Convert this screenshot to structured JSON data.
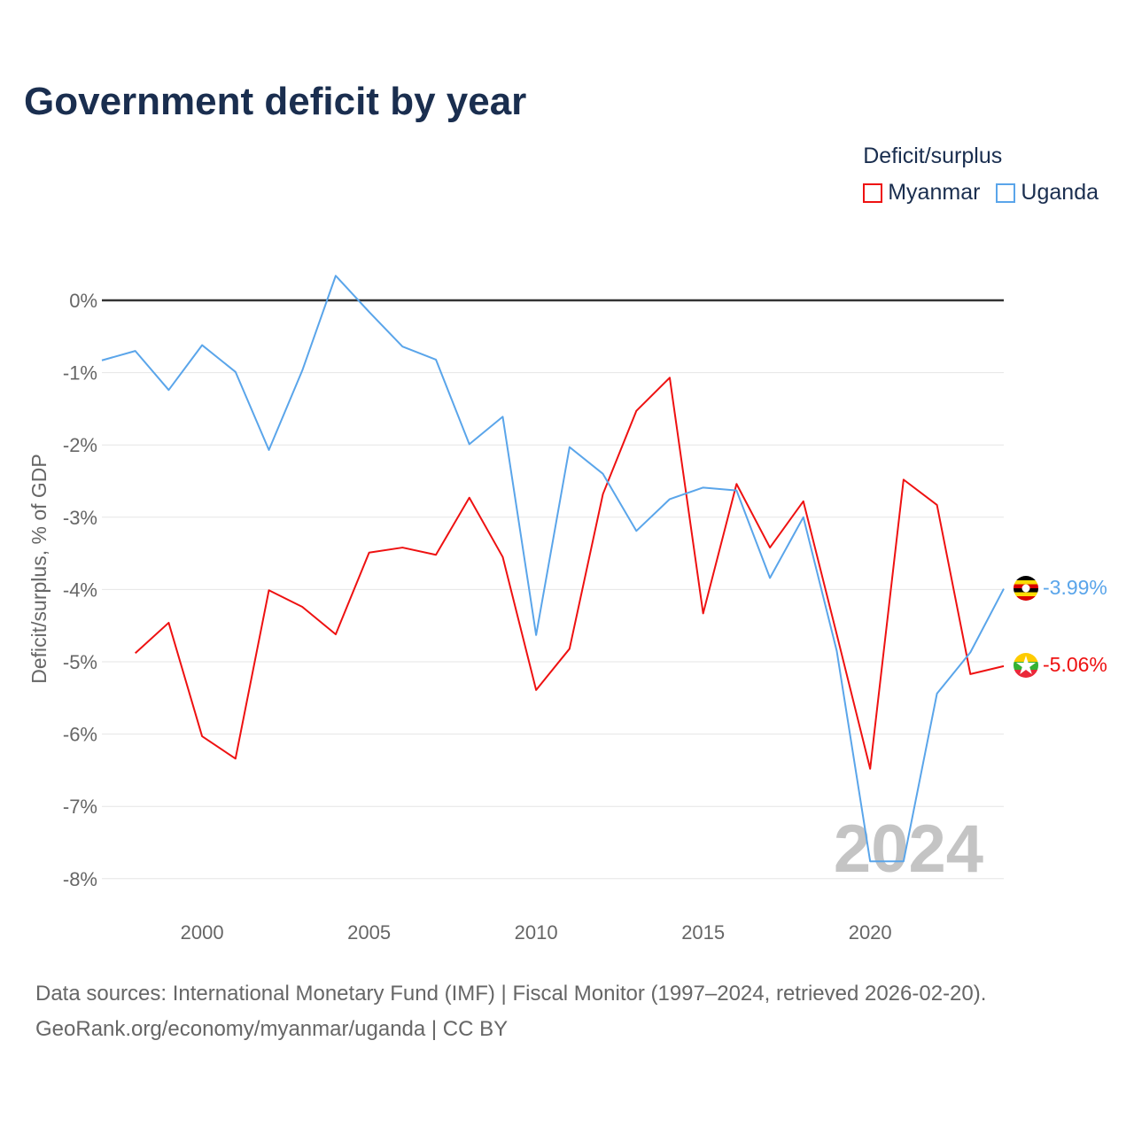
{
  "chart_data": {
    "type": "line",
    "title": "Government deficit by year",
    "ylabel": "Deficit/surplus, % of GDP",
    "xlabel": "",
    "xlim": [
      1997,
      2024
    ],
    "ylim": [
      -8.4,
      0.9
    ],
    "x_ticks": [
      2000,
      2005,
      2010,
      2015,
      2020
    ],
    "x_tick_labels": [
      "2000",
      "2005",
      "2010",
      "2015",
      "2020"
    ],
    "y_ticks": [
      0,
      -1,
      -2,
      -3,
      -4,
      -5,
      -6,
      -7,
      -8
    ],
    "y_tick_labels": [
      "0%",
      "-1%",
      "-2%",
      "-3%",
      "-4%",
      "-5%",
      "-6%",
      "-7%",
      "-8%"
    ],
    "legend_title": "Deficit/surplus",
    "legend_position": "top-right",
    "watermark_year": "2024",
    "series": [
      {
        "name": "Myanmar",
        "color": "#ee1111",
        "end_label": "-5.06%",
        "x": [
          1998,
          1999,
          2000,
          2001,
          2002,
          2003,
          2004,
          2005,
          2006,
          2007,
          2008,
          2009,
          2010,
          2011,
          2012,
          2013,
          2014,
          2015,
          2016,
          2017,
          2018,
          2019,
          2020,
          2021,
          2022,
          2023,
          2024
        ],
        "values": [
          -4.88,
          -4.46,
          -6.03,
          -6.34,
          -4.01,
          -4.24,
          -4.62,
          -3.49,
          -3.42,
          -3.52,
          -2.73,
          -3.55,
          -5.39,
          -4.82,
          -2.68,
          -1.53,
          -1.07,
          -4.33,
          -2.54,
          -3.42,
          -2.78,
          -4.62,
          -6.48,
          -2.48,
          -2.83,
          -5.17,
          -5.06
        ]
      },
      {
        "name": "Uganda",
        "color": "#5aa5ea",
        "end_label": "-3.99%",
        "x": [
          1997,
          1998,
          1999,
          2000,
          2001,
          2002,
          2003,
          2004,
          2005,
          2006,
          2007,
          2008,
          2009,
          2010,
          2011,
          2012,
          2013,
          2014,
          2015,
          2016,
          2017,
          2018,
          2019,
          2020,
          2021,
          2022,
          2023,
          2024
        ],
        "values": [
          -0.83,
          -0.7,
          -1.24,
          -0.62,
          -0.99,
          -2.07,
          -0.97,
          0.34,
          -0.16,
          -0.64,
          -0.82,
          -1.99,
          -1.61,
          -4.63,
          -2.03,
          -2.4,
          -3.19,
          -2.75,
          -2.59,
          -2.63,
          -3.84,
          -3.0,
          -4.85,
          -7.76,
          -7.76,
          -5.44,
          -4.87,
          -3.99
        ]
      }
    ]
  },
  "footer": {
    "sources": "Data sources: International Monetary Fund (IMF) | Fiscal Monitor (1997–2024, retrieved 2026-02-20).",
    "credit": "GeoRank.org/economy/myanmar/uganda | CC BY"
  }
}
